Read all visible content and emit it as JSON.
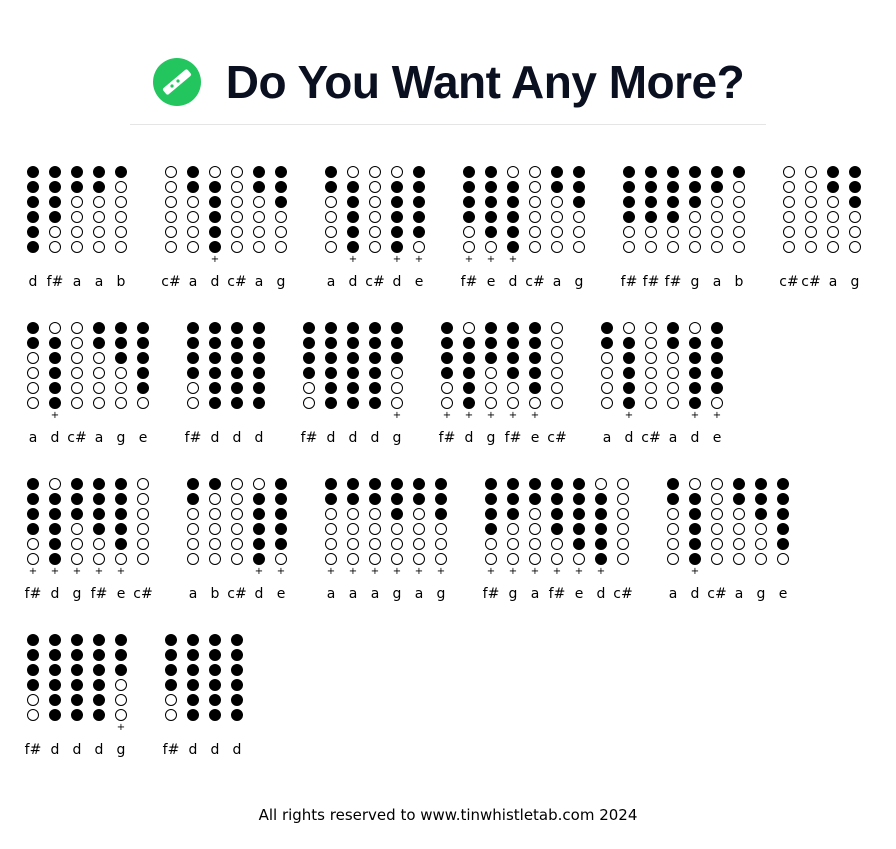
{
  "header": {
    "title": "Do You Want Any More?"
  },
  "rows": [
    [
      [
        {
          "note": "d"
        },
        {
          "note": "f#"
        },
        {
          "note": "a"
        },
        {
          "note": "a"
        },
        {
          "note": "b"
        }
      ],
      [
        {
          "note": "c#"
        },
        {
          "note": "a"
        },
        {
          "note": "d",
          "octave": "+"
        },
        {
          "note": "c#"
        },
        {
          "note": "a"
        },
        {
          "note": "g"
        }
      ],
      [
        {
          "note": "a"
        },
        {
          "note": "d",
          "octave": "+"
        },
        {
          "note": "c#"
        },
        {
          "note": "d",
          "octave": "+"
        },
        {
          "note": "e",
          "octave": "+"
        }
      ],
      [
        {
          "note": "f#",
          "octave": "+"
        },
        {
          "note": "e",
          "octave": "+"
        },
        {
          "note": "d",
          "octave": "+"
        },
        {
          "note": "c#"
        },
        {
          "note": "a"
        },
        {
          "note": "g"
        }
      ],
      [
        {
          "note": "f#"
        },
        {
          "note": "f#"
        },
        {
          "note": "f#"
        },
        {
          "note": "g"
        },
        {
          "note": "a"
        },
        {
          "note": "b"
        }
      ],
      [
        {
          "note": "c#"
        },
        {
          "note": "c#"
        },
        {
          "note": "a"
        },
        {
          "note": "g"
        }
      ]
    ],
    [
      [
        {
          "note": "a"
        },
        {
          "note": "d",
          "octave": "+"
        },
        {
          "note": "c#"
        },
        {
          "note": "a"
        },
        {
          "note": "g"
        },
        {
          "note": "e"
        }
      ],
      [
        {
          "note": "f#"
        },
        {
          "note": "d"
        },
        {
          "note": "d"
        },
        {
          "note": "d"
        }
      ],
      [
        {
          "note": "f#"
        },
        {
          "note": "d"
        },
        {
          "note": "d"
        },
        {
          "note": "d"
        },
        {
          "note": "g",
          "octave": "+"
        }
      ],
      [
        {
          "note": "f#",
          "octave": "+"
        },
        {
          "note": "d",
          "octave": "+"
        },
        {
          "note": "g",
          "octave": "+"
        },
        {
          "note": "f#",
          "octave": "+"
        },
        {
          "note": "e",
          "octave": "+"
        },
        {
          "note": "c#"
        }
      ],
      [
        {
          "note": "a"
        },
        {
          "note": "d",
          "octave": "+"
        },
        {
          "note": "c#"
        },
        {
          "note": "a"
        },
        {
          "note": "d",
          "octave": "+"
        },
        {
          "note": "e",
          "octave": "+"
        }
      ]
    ],
    [
      [
        {
          "note": "f#",
          "octave": "+"
        },
        {
          "note": "d",
          "octave": "+"
        },
        {
          "note": "g",
          "octave": "+"
        },
        {
          "note": "f#",
          "octave": "+"
        },
        {
          "note": "e",
          "octave": "+"
        },
        {
          "note": "c#"
        }
      ],
      [
        {
          "note": "a"
        },
        {
          "note": "b"
        },
        {
          "note": "c#"
        },
        {
          "note": "d",
          "octave": "+"
        },
        {
          "note": "e",
          "octave": "+"
        }
      ],
      [
        {
          "note": "a",
          "octave": "+"
        },
        {
          "note": "a",
          "octave": "+"
        },
        {
          "note": "a",
          "octave": "+"
        },
        {
          "note": "g",
          "octave": "+"
        },
        {
          "note": "a",
          "octave": "+"
        },
        {
          "note": "g",
          "octave": "+"
        }
      ],
      [
        {
          "note": "f#",
          "octave": "+"
        },
        {
          "note": "g",
          "octave": "+"
        },
        {
          "note": "a",
          "octave": "+"
        },
        {
          "note": "f#",
          "octave": "+"
        },
        {
          "note": "e",
          "octave": "+"
        },
        {
          "note": "d",
          "octave": "+"
        },
        {
          "note": "c#"
        }
      ],
      [
        {
          "note": "a"
        },
        {
          "note": "d",
          "octave": "+"
        },
        {
          "note": "c#"
        },
        {
          "note": "a"
        },
        {
          "note": "g"
        },
        {
          "note": "e"
        }
      ]
    ],
    [
      [
        {
          "note": "f#"
        },
        {
          "note": "d"
        },
        {
          "note": "d"
        },
        {
          "note": "d"
        },
        {
          "note": "g",
          "octave": "+"
        }
      ],
      [
        {
          "note": "f#"
        },
        {
          "note": "d"
        },
        {
          "note": "d"
        },
        {
          "note": "d"
        }
      ]
    ]
  ],
  "footer": {
    "text": "All rights reserved to www.tinwhistletab.com 2024"
  }
}
